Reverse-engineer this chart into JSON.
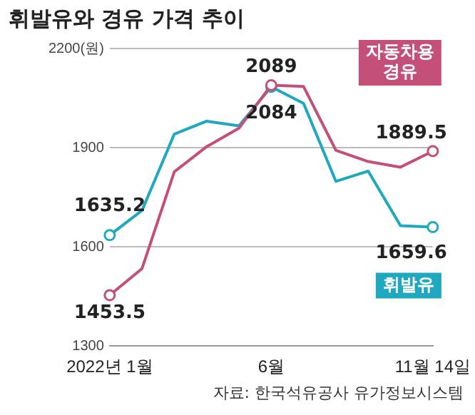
{
  "chart_data": {
    "type": "line",
    "title": "휘발유와 경유 가격 추이",
    "categories": [
      "2022년 1월",
      null,
      null,
      null,
      null,
      "6월",
      null,
      null,
      null,
      null,
      "11월 14일"
    ],
    "series": [
      {
        "name": "자동차용 경유",
        "color": "#c4507a",
        "values": [
          1453.5,
          1534,
          1827,
          1903,
          1959,
          2089,
          2085,
          1892,
          1858,
          1841,
          1889.5
        ],
        "value_labels": [
          "1453.5",
          null,
          null,
          null,
          null,
          "2089",
          null,
          null,
          null,
          null,
          "1889.5"
        ]
      },
      {
        "name": "휘발유",
        "color": "#1fa8c0",
        "values": [
          1635.2,
          1710,
          1941,
          1980,
          1966,
          2084,
          2034,
          1798,
          1829,
          1664,
          1659.6
        ],
        "value_labels": [
          "1635.2",
          null,
          null,
          null,
          null,
          "2084",
          null,
          null,
          null,
          null,
          "1659.6"
        ]
      }
    ],
    "ylim": [
      1300,
      2200
    ],
    "yticks": [
      1300,
      1600,
      1900,
      {
        "value": 2200,
        "label": "2200(원)"
      }
    ],
    "grid": "y",
    "line_style": "solid",
    "annotations": [
      "자료: 한국석유공사 유가정보시스템"
    ]
  }
}
